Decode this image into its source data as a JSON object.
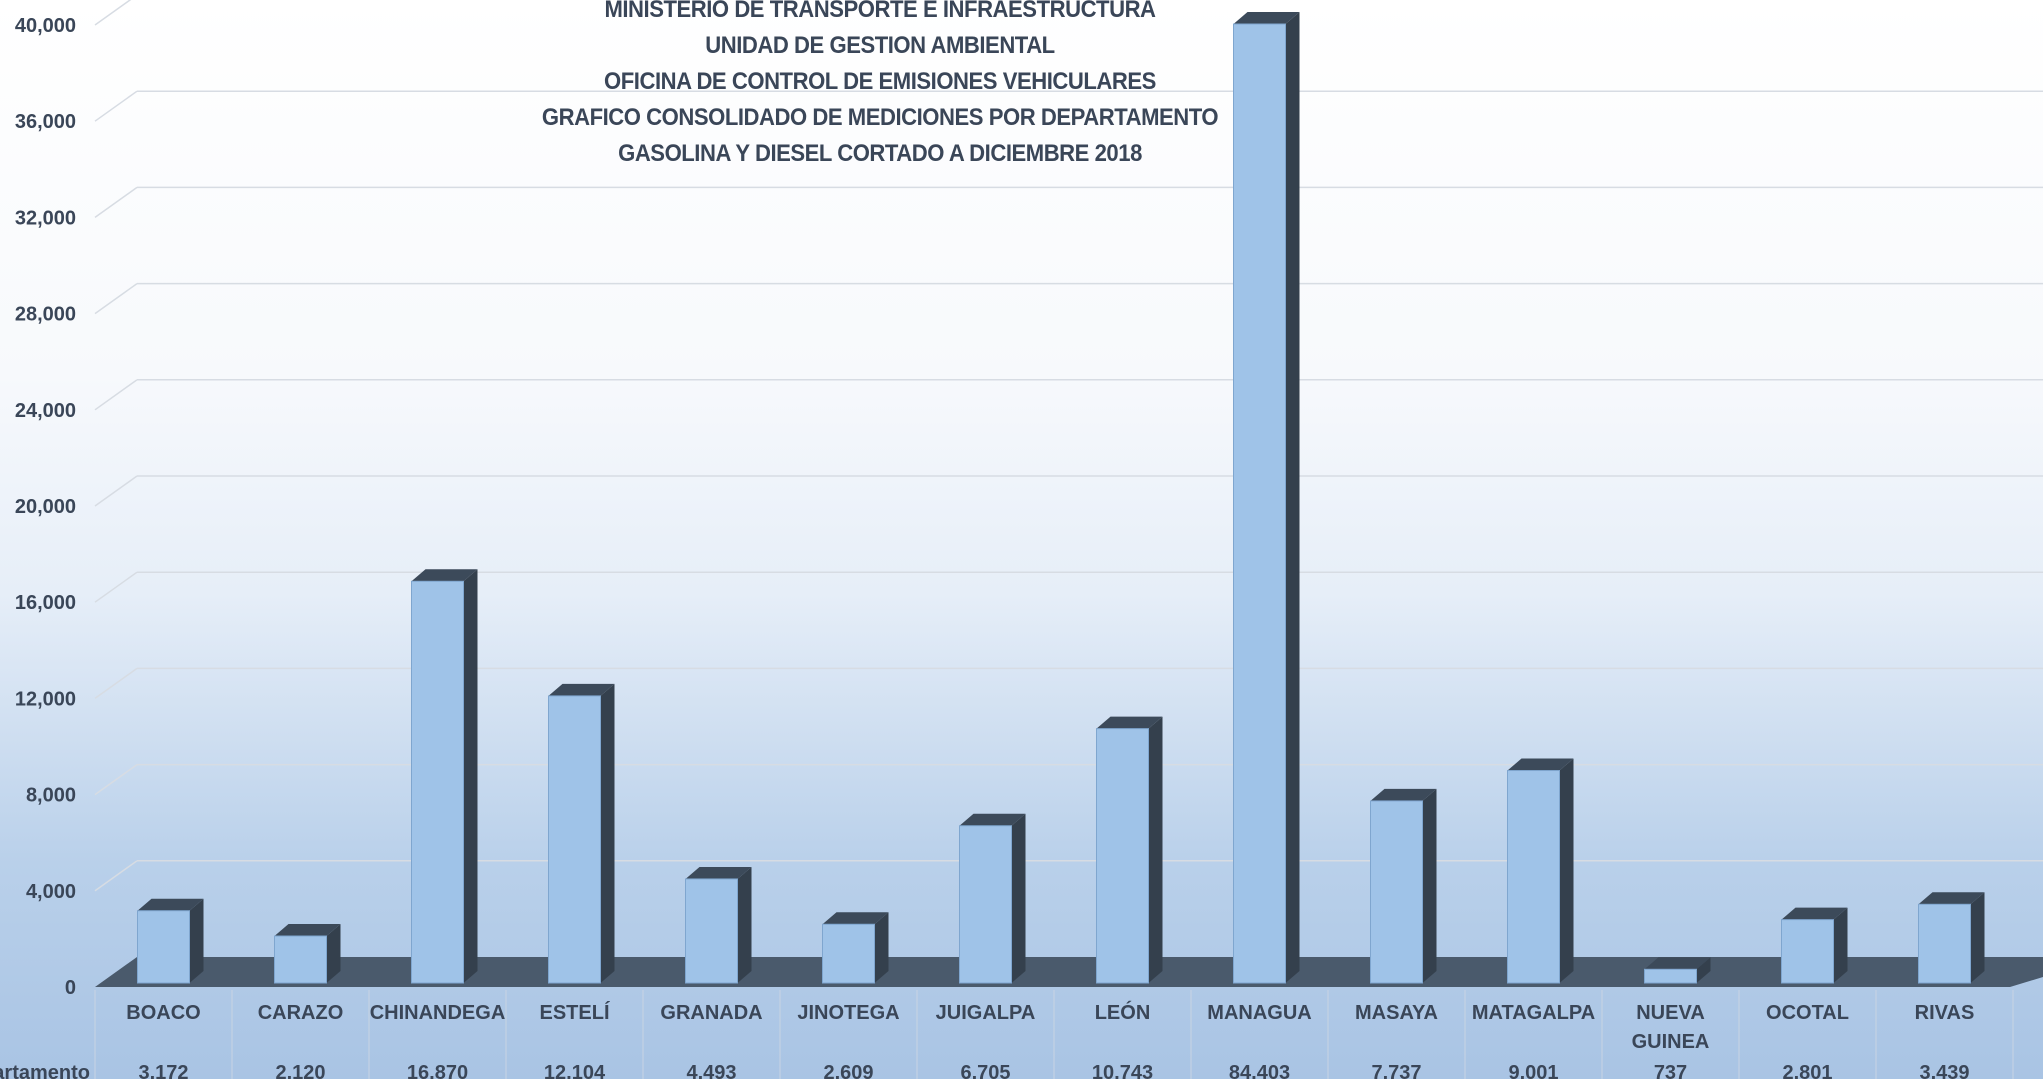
{
  "title_lines": [
    "MINISTERIO DE TRANSPORTE E INFRAESTRUCTURA",
    "UNIDAD DE GESTION AMBIENTAL",
    "OFICINA DE CONTROL DE EMISIONES VEHICULARES",
    "GRAFICO CONSOLIDADO DE MEDICIONES POR DEPARTAMENTO",
    "GASOLINA Y DIESEL CORTADO A DICIEMBRE 2018"
  ],
  "chart_data": {
    "type": "bar",
    "title": "MINISTERIO DE TRANSPORTE E INFRAESTRUCTURA / UNIDAD DE GESTION AMBIENTAL / OFICINA DE CONTROL DE EMISIONES VEHICULARES / GRAFICO CONSOLIDADO DE MEDICIONES POR DEPARTAMENTO / GASOLINA Y DIESEL CORTADO A DICIEMBRE 2018",
    "categories": [
      "BOACO",
      "CARAZO",
      "CHINANDEGA",
      "ESTELÍ",
      "GRANADA",
      "JINOTEGA",
      "JUIGALPA",
      "LEÓN",
      "MANAGUA",
      "MASAYA",
      "MATAGALPA",
      "NUEVA GUINEA",
      "OCOTAL",
      "RIVAS"
    ],
    "series": [
      {
        "name": "Departamento",
        "values": [
          3172,
          2120,
          16870,
          12104,
          4493,
          2609,
          6705,
          10743,
          84403,
          7737,
          9001,
          737,
          2801,
          3439
        ],
        "value_labels": [
          "3,172",
          "2,120",
          "16,870",
          "12,104",
          "4,493",
          "2,609",
          "6,705",
          "10,743",
          "84,403",
          "7,737",
          "9,001",
          "737",
          "2,801",
          "3,439"
        ]
      }
    ],
    "table_row_label": "Departamento",
    "ylim": [
      0,
      40000
    ],
    "y_ticks": [
      "0",
      "4,000",
      "8,000",
      "12,000",
      "16,000",
      "20,000",
      "24,000",
      "28,000",
      "32,000",
      "36,000",
      "40,000"
    ],
    "grid": true,
    "legend": "none",
    "colors": {
      "bar_front": "#9fc3e8",
      "bar_side": "#34404d",
      "bar_top": "#3c4a5a",
      "floor": "#4a5a6c",
      "grid": "#d7dce3"
    }
  }
}
